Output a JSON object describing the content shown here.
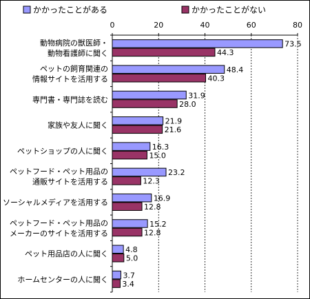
{
  "chart_data": {
    "type": "bar",
    "orientation": "horizontal",
    "title": "",
    "xlabel": "",
    "ylabel": "",
    "xlim": [
      0,
      80
    ],
    "xticks": [
      0,
      20,
      40,
      60,
      80
    ],
    "grid": "vertical dashed",
    "legend_position": "top",
    "categories": [
      [
        "動物病院の獣医師・",
        "動物看護師に聞く"
      ],
      [
        "ペットの飼育関連の",
        "情報サイトを活用する"
      ],
      [
        "専門書・専門誌を読む"
      ],
      [
        "家族や友人に聞く"
      ],
      [
        "ペットショップの人に聞く"
      ],
      [
        "ペットフード・ペット用品の",
        "通販サイトを活用する"
      ],
      [
        "ソーシャルメディアを活用する"
      ],
      [
        "ペットフード・ペット用品の",
        "メーカーのサイトを活用する"
      ],
      [
        "ペット用品店の人に聞く"
      ],
      [
        "ホームセンターの人に聞く"
      ]
    ],
    "series": [
      {
        "name": "かかったことがある",
        "color": "#9999ff",
        "values": [
          73.5,
          48.4,
          31.9,
          21.9,
          16.3,
          23.2,
          16.9,
          15.2,
          4.8,
          3.7
        ],
        "labels": [
          "73.5",
          "48.4",
          "31.9",
          "21.9",
          "16.3",
          "23.2",
          "16.9",
          "15.2",
          "4.8",
          "3.7"
        ]
      },
      {
        "name": "かかったことがない",
        "color": "#993366",
        "values": [
          44.3,
          40.3,
          28.0,
          21.6,
          15.0,
          12.3,
          12.8,
          12.8,
          5.0,
          3.4
        ],
        "labels": [
          "44.3",
          "40.3",
          "28.0",
          "21.6",
          "15.0",
          "12.3",
          "12.8",
          "12.8",
          "5.0",
          "3.4"
        ]
      }
    ]
  }
}
